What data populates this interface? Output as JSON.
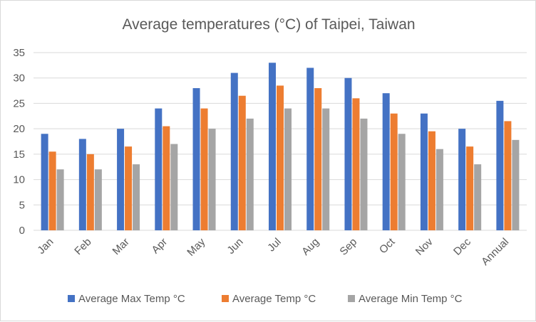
{
  "chart_data": {
    "type": "bar",
    "title": "Average temperatures (°C) of Taipei, Taiwan",
    "xlabel": "",
    "ylabel": "",
    "categories": [
      "Jan",
      "Feb",
      "Mar",
      "Apr",
      "May",
      "Jun",
      "Jul",
      "Aug",
      "Sep",
      "Oct",
      "Nov",
      "Dec",
      "Annual"
    ],
    "series": [
      {
        "name": "Average Max Temp °C",
        "color": "#4472c4",
        "values": [
          19,
          18,
          20,
          24,
          28,
          31,
          33,
          32,
          30,
          27,
          23,
          20,
          25.5
        ]
      },
      {
        "name": "Average Temp °C",
        "color": "#ed7d31",
        "values": [
          15.5,
          15,
          16.5,
          20.5,
          24,
          26.5,
          28.5,
          28,
          26,
          23,
          19.5,
          16.5,
          21.5
        ]
      },
      {
        "name": "Average Min Temp °C",
        "color": "#a5a5a5",
        "values": [
          12,
          12,
          13,
          17,
          20,
          22,
          24,
          24,
          22,
          19,
          16,
          13,
          17.8
        ]
      }
    ],
    "yticks": [
      0,
      5,
      10,
      15,
      20,
      25,
      30,
      35
    ],
    "ylim": [
      0,
      35
    ],
    "grid": true,
    "legend_position": "bottom"
  }
}
